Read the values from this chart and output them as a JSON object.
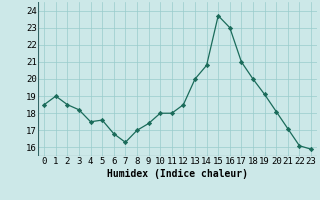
{
  "x": [
    0,
    1,
    2,
    3,
    4,
    5,
    6,
    7,
    8,
    9,
    10,
    11,
    12,
    13,
    14,
    15,
    16,
    17,
    18,
    19,
    20,
    21,
    22,
    23
  ],
  "y": [
    18.5,
    19.0,
    18.5,
    18.2,
    17.5,
    17.6,
    16.8,
    16.3,
    17.0,
    17.4,
    18.0,
    18.0,
    18.5,
    20.0,
    20.8,
    23.7,
    23.0,
    21.0,
    20.0,
    19.1,
    18.1,
    17.1,
    16.1,
    15.9
  ],
  "xlabel": "Humidex (Indice chaleur)",
  "ylim": [
    15.5,
    24.5
  ],
  "xlim": [
    -0.5,
    23.5
  ],
  "yticks": [
    16,
    17,
    18,
    19,
    20,
    21,
    22,
    23,
    24
  ],
  "xticks": [
    0,
    1,
    2,
    3,
    4,
    5,
    6,
    7,
    8,
    9,
    10,
    11,
    12,
    13,
    14,
    15,
    16,
    17,
    18,
    19,
    20,
    21,
    22,
    23
  ],
  "line_color": "#1a6b5a",
  "marker": "D",
  "marker_size": 2.2,
  "bg_color": "#cce8e8",
  "grid_color": "#99cccc",
  "label_fontsize": 7,
  "tick_fontsize": 6.5
}
